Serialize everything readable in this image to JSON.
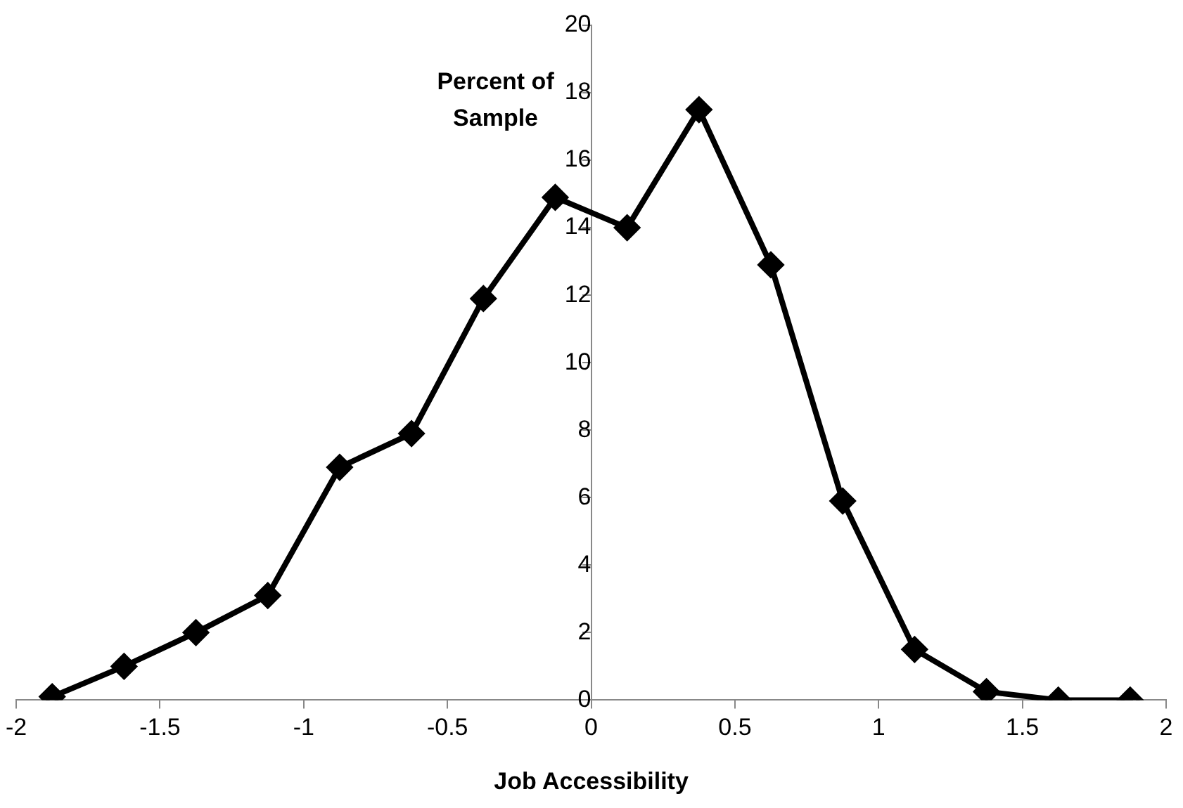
{
  "chart_data": {
    "type": "line",
    "xlabel": "Job Accessibility",
    "ylabel": "Percent of Sample",
    "x": [
      -1.875,
      -1.625,
      -1.375,
      -1.125,
      -0.875,
      -0.625,
      -0.375,
      -0.125,
      0.125,
      0.375,
      0.625,
      0.875,
      1.125,
      1.375,
      1.625,
      1.875
    ],
    "series": [
      {
        "color": "#000000",
        "values": [
          0.1,
          1.0,
          2.0,
          3.1,
          6.9,
          7.9,
          11.9,
          14.9,
          14.0,
          17.5,
          12.9,
          5.9,
          1.5,
          0.25,
          0.0,
          0.0
        ]
      }
    ],
    "xlim": [
      -2,
      2
    ],
    "xticks": [
      -2,
      -1.5,
      -1,
      -0.5,
      0,
      0.5,
      1,
      1.5,
      2
    ],
    "ylim": [
      0,
      20
    ],
    "yticks": [
      0,
      2,
      4,
      6,
      8,
      10,
      12,
      14,
      16,
      18,
      20
    ],
    "grid": false,
    "legend": false,
    "marker": "diamond",
    "line_style": "solid"
  }
}
